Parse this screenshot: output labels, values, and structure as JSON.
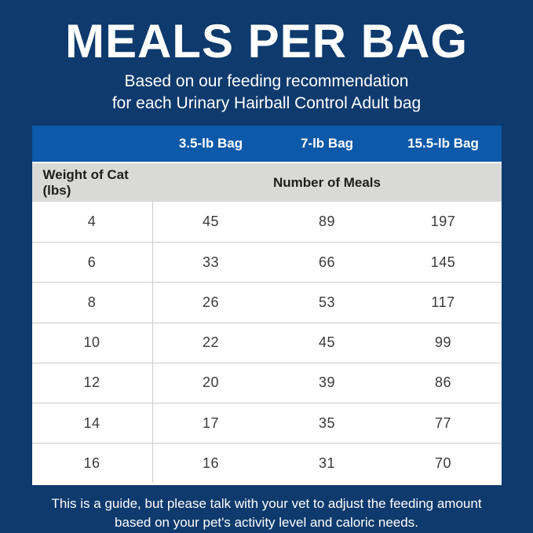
{
  "colors": {
    "background_navy": "#0e3a6d",
    "header_blue": "#0d59a9",
    "subheader_gray": "#d9d9d7",
    "table_white": "#ffffff",
    "divider_gray": "#cccccc",
    "data_text": "#3a3a3a",
    "white_text": "#ffffff"
  },
  "header": {
    "title": "MEALS PER BAG",
    "subtitle_line1": "Based on our feeding recommendation",
    "subtitle_line2": "for each Urinary Hairball Control Adult bag"
  },
  "table": {
    "bag_columns": [
      "3.5-lb Bag",
      "7-lb Bag",
      "15.5-lb Bag"
    ],
    "weight_header": "Weight of Cat (lbs)",
    "meals_header": "Number of Meals",
    "rows": [
      [
        "4",
        "45",
        "89",
        "197"
      ],
      [
        "6",
        "33",
        "66",
        "145"
      ],
      [
        "8",
        "26",
        "53",
        "117"
      ],
      [
        "10",
        "22",
        "45",
        "99"
      ],
      [
        "12",
        "20",
        "39",
        "86"
      ],
      [
        "14",
        "17",
        "35",
        "77"
      ],
      [
        "16",
        "16",
        "31",
        "70"
      ]
    ]
  },
  "footer": {
    "line1": "This is a guide, but please talk with your vet to adjust the feeding amount",
    "line2": "based on your pet's activity level and caloric needs."
  },
  "chart_data": {
    "type": "table",
    "title": "MEALS PER BAG",
    "subtitle": "Based on our feeding recommendation for each Urinary Hairball Control Adult bag",
    "columns": [
      "Weight of Cat (lbs)",
      "3.5-lb Bag",
      "7-lb Bag",
      "15.5-lb Bag"
    ],
    "value_label": "Number of Meals",
    "rows": [
      [
        4,
        45,
        89,
        197
      ],
      [
        6,
        33,
        66,
        145
      ],
      [
        8,
        26,
        53,
        117
      ],
      [
        10,
        22,
        45,
        99
      ],
      [
        12,
        20,
        39,
        86
      ],
      [
        14,
        17,
        35,
        77
      ],
      [
        16,
        16,
        31,
        70
      ]
    ],
    "note": "This is a guide, but please talk with your vet to adjust the feeding amount based on your pet's activity level and caloric needs."
  }
}
